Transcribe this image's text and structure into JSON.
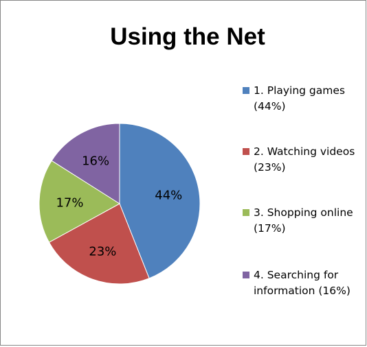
{
  "chart_data": {
    "type": "pie",
    "title": "Using the Net",
    "categories": [
      "1. Playing games (44%)",
      "2. Watching videos (23%)",
      "3. Shopping online (17%)",
      "4. Searching for information (16%)"
    ],
    "values": [
      44,
      23,
      17,
      16
    ],
    "data_labels": [
      "44%",
      "23%",
      "17%",
      "16%"
    ],
    "colors": [
      "#4F81BD",
      "#C0504D",
      "#9BBB59",
      "#8064A2"
    ],
    "legend_position": "right"
  }
}
